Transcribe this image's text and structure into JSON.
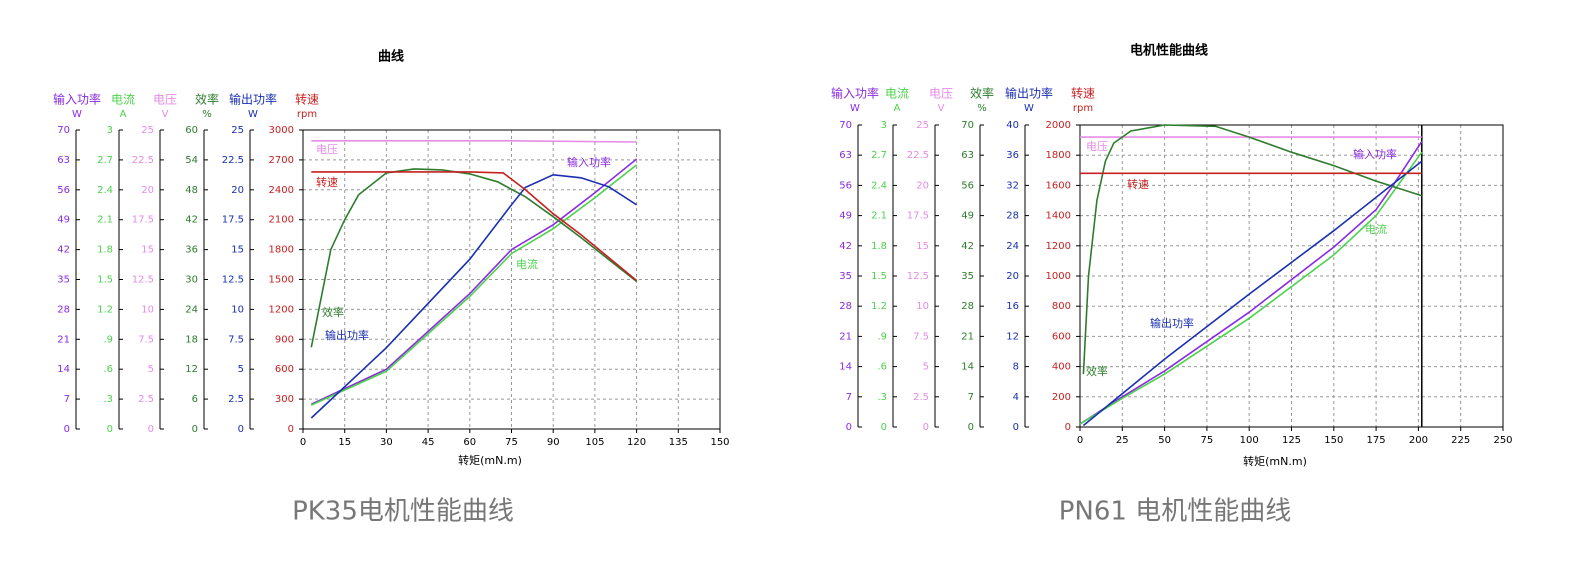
{
  "chart_data": [
    {
      "type": "line",
      "title": "曲线",
      "caption": "PK35电机性能曲线",
      "x_label": "转矩(mN.m)",
      "xlim": [
        0,
        150
      ],
      "xticks": [
        0,
        15,
        30,
        45,
        60,
        75,
        90,
        105,
        120,
        135,
        150
      ],
      "grid": true,
      "series": [
        {
          "name": "输入功率",
          "unit": "W",
          "color": "#8a2be2",
          "ylim": [
            0,
            70
          ],
          "yticks": [
            0,
            7,
            14,
            21,
            28,
            35,
            42,
            49,
            56,
            63,
            70
          ],
          "x": [
            3,
            30,
            60,
            75,
            90,
            105,
            120
          ],
          "values": [
            5.8,
            14,
            31.7,
            42,
            47.8,
            55.3,
            63.2
          ]
        },
        {
          "name": "电流",
          "unit": "A",
          "color": "#4cd24c",
          "ylim": [
            0,
            3
          ],
          "yticks": [
            0,
            {
              "value": 0.3,
              "label": ".3"
            },
            {
              "value": 0.6,
              "label": ".6"
            },
            {
              "value": 0.9,
              "label": ".9"
            },
            1.2,
            1.5,
            1.8,
            2.1,
            2.4,
            2.7,
            3
          ],
          "x": [
            3,
            30,
            60,
            75,
            90,
            105,
            120
          ],
          "values": [
            0.24,
            0.58,
            1.33,
            1.76,
            2.01,
            2.32,
            2.65
          ]
        },
        {
          "name": "电压",
          "unit": "V",
          "color": "#e68be6",
          "ylim": [
            0,
            25
          ],
          "yticks": [
            0,
            2.5,
            5,
            7.5,
            10,
            12.5,
            15,
            17.5,
            20,
            22.5,
            25
          ],
          "x": [
            3,
            75,
            120
          ],
          "values": [
            24.1,
            24.1,
            24.0
          ]
        },
        {
          "name": "效率",
          "unit": "%",
          "color": "#2e7d2e",
          "ylim": [
            0,
            60
          ],
          "yticks": [
            0,
            6,
            12,
            18,
            24,
            30,
            36,
            42,
            48,
            54,
            60
          ],
          "x": [
            3,
            10,
            15,
            20,
            30,
            40,
            50,
            60,
            70,
            80,
            90,
            100,
            110,
            120
          ],
          "values": [
            16.4,
            36,
            42,
            47,
            51.4,
            52.2,
            52,
            51.2,
            49.6,
            46.6,
            42.6,
            38.4,
            34,
            29.6
          ]
        },
        {
          "name": "输出功率",
          "unit": "W",
          "color": "#1a2fb0",
          "ylim": [
            0,
            25
          ],
          "yticks": [
            0,
            2.5,
            5,
            7.5,
            10,
            12.5,
            15,
            17.5,
            20,
            22.5,
            25
          ],
          "x": [
            3,
            30,
            60,
            75,
            80,
            90,
            100,
            110,
            120
          ],
          "values": [
            0.92,
            6.8,
            14.2,
            18.75,
            20.2,
            21.25,
            21,
            20.25,
            18.75
          ]
        },
        {
          "name": "转速",
          "unit": "rpm",
          "color": "#c62020",
          "ylim": [
            0,
            3000
          ],
          "yticks": [
            0,
            300,
            600,
            900,
            1200,
            1500,
            1800,
            2100,
            2400,
            2700,
            3000
          ],
          "x": [
            3,
            30,
            60,
            72,
            80,
            90,
            100,
            110,
            120
          ],
          "values": [
            2580,
            2580,
            2580,
            2570,
            2400,
            2160,
            1950,
            1720,
            1490
          ]
        }
      ]
    },
    {
      "type": "line",
      "title": "电机性能曲线",
      "caption": "PN61 电机性能曲线",
      "x_label": "转矩(mN.m)",
      "xlim": [
        0,
        250
      ],
      "xticks": [
        0,
        25,
        50,
        75,
        100,
        125,
        150,
        175,
        200,
        225,
        250
      ],
      "grid": true,
      "series": [
        {
          "name": "输入功率",
          "unit": "W",
          "color": "#8a2be2",
          "ylim": [
            0,
            70
          ],
          "yticks": [
            0,
            7,
            14,
            21,
            28,
            35,
            42,
            49,
            56,
            63,
            70
          ],
          "x": [
            0,
            25,
            50,
            100,
            150,
            175,
            185,
            202
          ],
          "values": [
            0.7,
            7,
            13,
            26.6,
            41.7,
            50.4,
            56,
            66.2
          ]
        },
        {
          "name": "电流",
          "unit": "A",
          "color": "#4cd24c",
          "ylim": [
            0,
            3
          ],
          "yticks": [
            0,
            {
              "value": 0.3,
              "label": ".3"
            },
            {
              "value": 0.6,
              "label": ".6"
            },
            {
              "value": 0.9,
              "label": ".9"
            },
            1.2,
            1.5,
            1.8,
            2.1,
            2.4,
            2.7,
            3
          ],
          "x": [
            0,
            25,
            50,
            100,
            150,
            175,
            202
          ],
          "values": [
            0.03,
            0.285,
            0.525,
            1.08,
            1.71,
            2.1,
            2.73
          ]
        },
        {
          "name": "电压",
          "unit": "V",
          "color": "#e68be6",
          "ylim": [
            0,
            25
          ],
          "yticks": [
            0,
            2.5,
            5,
            7.5,
            10,
            12.5,
            15,
            17.5,
            20,
            22.5,
            25
          ],
          "x": [
            0,
            202
          ],
          "values": [
            24,
            24
          ]
        },
        {
          "name": "效率",
          "unit": "%",
          "color": "#2e7d2e",
          "ylim": [
            0,
            70
          ],
          "yticks": [
            0,
            7,
            14,
            21,
            28,
            35,
            42,
            49,
            56,
            63,
            70
          ],
          "x": [
            2,
            5,
            10,
            15,
            20,
            30,
            50,
            80,
            100,
            125,
            150,
            175,
            202
          ],
          "values": [
            12.25,
            35,
            52.5,
            61.6,
            65.8,
            68.6,
            70,
            69.7,
            67.2,
            63.7,
            60.6,
            57,
            53.6
          ]
        },
        {
          "name": "输出功率",
          "unit": "W",
          "color": "#1a2fb0",
          "ylim": [
            0,
            40
          ],
          "yticks": [
            0,
            4,
            8,
            12,
            16,
            20,
            24,
            28,
            32,
            36,
            40
          ],
          "x": [
            2,
            50,
            100,
            150,
            202
          ],
          "values": [
            0.2,
            9,
            17.6,
            26,
            35.2
          ]
        },
        {
          "name": "转速",
          "unit": "rpm",
          "color": "#c62020",
          "ylim": [
            0,
            2000
          ],
          "yticks": [
            0,
            200,
            400,
            600,
            800,
            1000,
            1200,
            1400,
            1600,
            1800,
            2000
          ],
          "x": [
            0,
            202
          ],
          "values": [
            1680,
            1680
          ]
        }
      ]
    }
  ]
}
